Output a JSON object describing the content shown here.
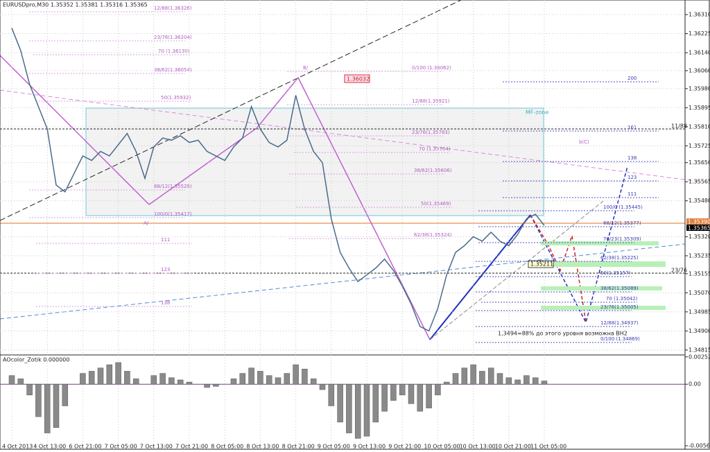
{
  "chart_data": [
    {
      "type": "line",
      "title": "EURUSDpro,M30  1.35352 1.35381 1.35316 1.35365",
      "categories": [
        "4 Oct 2013",
        null,
        null,
        null,
        "4 Oct 13:00",
        null,
        null,
        null,
        "6 Oct 21:00",
        null,
        null,
        null,
        "7 Oct 05:00",
        null,
        null,
        null,
        "7 Oct 13:00",
        null,
        null,
        null,
        "7 Oct 21:00",
        null,
        null,
        null,
        "8 Oct 05:00",
        null,
        null,
        null,
        "8 Oct 13:00",
        null,
        null,
        null,
        "8 Oct 21:00",
        null,
        null,
        null,
        "9 Oct 05:00",
        null,
        null,
        null,
        "9 Oct 13:00",
        null,
        null,
        null,
        "9 Oct 21:00",
        null,
        null,
        null,
        "10 Oct 05:00",
        null,
        null,
        null,
        "10 Oct 13:00",
        null,
        null,
        null,
        "10 Oct 21:00",
        null,
        null,
        null,
        "11 Oct 05:00"
      ],
      "series": [
        {
          "name": "EURUSDpro",
          "color": "#4a6a8a",
          "values": [
            1.3625,
            1.3615,
            1.36,
            1.359,
            1.358,
            1.3555,
            1.3552,
            1.356,
            1.3568,
            1.3566,
            1.357,
            1.3568,
            1.3573,
            1.3578,
            1.357,
            1.3558,
            1.3572,
            1.3576,
            1.3575,
            1.3577,
            1.3574,
            1.3575,
            1.357,
            1.3568,
            1.3566,
            1.3572,
            1.3576,
            1.359,
            1.358,
            1.3574,
            1.3572,
            1.3575,
            1.3595,
            1.358,
            1.357,
            1.3565,
            1.354,
            1.3525,
            1.3518,
            1.3512,
            1.3515,
            1.3518,
            1.3522,
            1.3517,
            1.351,
            1.3502,
            1.3492,
            1.349,
            1.35,
            1.3515,
            1.3525,
            1.3528,
            1.3532,
            1.353,
            1.3534,
            1.353,
            1.3528,
            1.3533,
            1.354,
            1.3542,
            1.3537
          ]
        }
      ],
      "ylim": [
        1.34793,
        1.36375
      ],
      "yticks": [
        {
          "value": 1.3631,
          "label": "1.36310"
        },
        {
          "value": 1.36225,
          "label": "1.36225"
        },
        {
          "value": 1.3614,
          "label": "1.36140"
        },
        {
          "value": 1.3606,
          "label": "1.36060"
        },
        {
          "value": 1.3598,
          "label": "1.35980"
        },
        {
          "value": 1.35895,
          "label": "1.35895"
        },
        {
          "value": 1.3581,
          "label": "1.35810"
        },
        {
          "value": 1.35725,
          "label": "1.35725"
        },
        {
          "value": 1.3565,
          "label": "1.35650"
        },
        {
          "value": 1.35565,
          "label": "1.35565"
        },
        {
          "value": 1.3548,
          "label": "1.35480"
        },
        {
          "value": 1.3532,
          "label": "1.35320"
        },
        {
          "value": 1.35235,
          "label": "1.35235"
        },
        {
          "value": 1.35155,
          "label": "1.35155"
        },
        {
          "value": 1.3507,
          "label": "1.35070"
        },
        {
          "value": 1.34985,
          "label": "1.34985"
        },
        {
          "value": 1.349,
          "label": "1.34900"
        },
        {
          "value": 1.34815,
          "label": "1.34815"
        }
      ],
      "grid": true,
      "annotations": [
        "MF-zone",
        "b(C)",
        "B/",
        "A/",
        "1.36032",
        "1,3494=88% до этого уровня возможна ВН2",
        "1.35211",
        "11/88",
        "23/76",
        "1.35390",
        "1.35365",
        "200",
        "161",
        "138",
        "123",
        "111",
        "100/0 (1.35445)",
        "88/12(1.35377)",
        "76/23(1.35309)",
        "62/38(1.35225)",
        "50(1.35157)",
        "38/62(1.35089)",
        "70 (1.35042)",
        "23/76(1.35005)",
        "12/88(1.34937)",
        "0/100 (1.34869)",
        "0/100 (1.36062)",
        "12/88(1.35921)",
        "23/76(1.35783)",
        "70 (1.35704)",
        "38/62(1.35606)",
        "50(1.35469)",
        "62/38(1.35324)",
        "12/88(1.36326)",
        "23/76(1.36204)",
        "70 (1.36130)",
        "38/62(1.36054)",
        "50(1.35932)",
        "88/12(1.35529)",
        "100/0(1.35417)",
        "111",
        "123",
        "138"
      ]
    },
    {
      "type": "bar",
      "title": "AOcolor_Zotik 0.000000",
      "color": "#8a8a8a",
      "values": [
        0.0008,
        0.0005,
        -0.001,
        -0.003,
        -0.0045,
        -0.004,
        -0.002,
        0,
        0.001,
        0.0012,
        0.0015,
        0.0018,
        0.002,
        0.0012,
        0.0005,
        0,
        0.0008,
        0.001,
        0.0006,
        0.0004,
        0.0002,
        0,
        -0.0003,
        -0.0002,
        0,
        0.0005,
        0.001,
        0.0015,
        0.0012,
        0.0008,
        0.0006,
        0.001,
        0.0018,
        0.0014,
        0.0005,
        -0.0005,
        -0.002,
        -0.0035,
        -0.0045,
        -0.005,
        -0.0048,
        -0.0035,
        -0.0025,
        -0.0015,
        -0.001,
        -0.0018,
        -0.0025,
        -0.0022,
        -0.001,
        0.0002,
        0.001,
        0.0015,
        0.0018,
        0.0012,
        0.0015,
        0.001,
        0.0006,
        0.0004,
        0.0008,
        0.0006,
        0.0003
      ],
      "ylim": [
        -0.006,
        0.0027
      ],
      "yticks": [
        0.002521,
        {
          "value": 0,
          "label": "0.00"
        },
        -0.005679
      ]
    }
  ]
}
